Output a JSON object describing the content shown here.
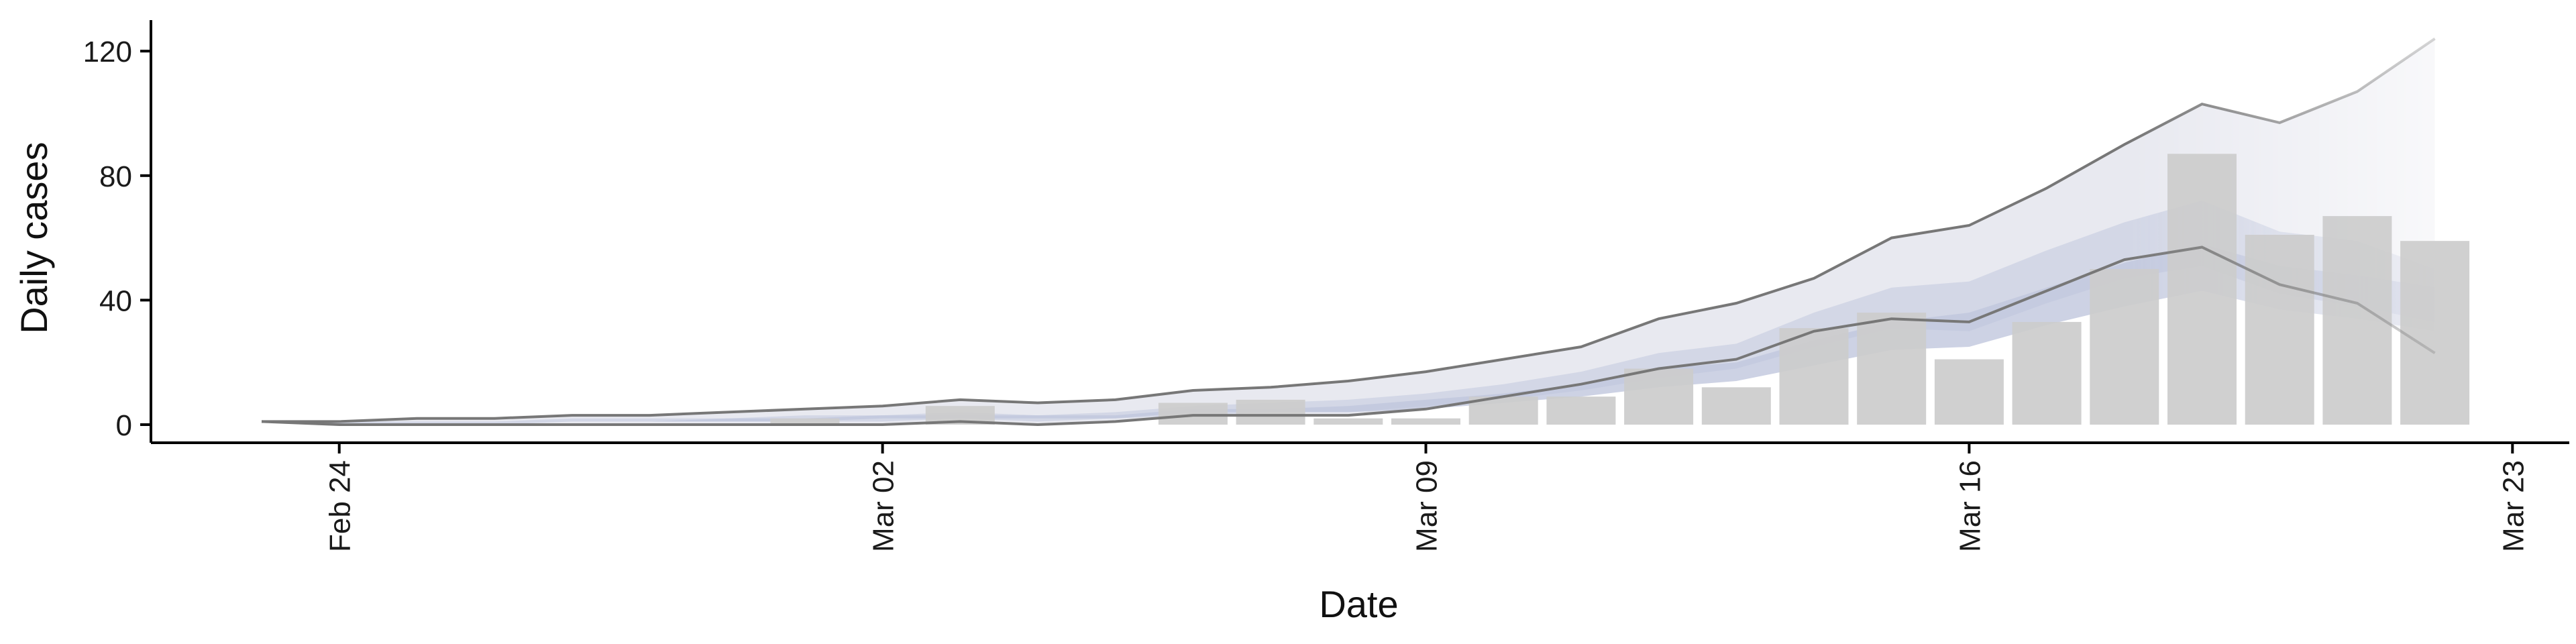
{
  "chart_data": {
    "type": "bar",
    "title": "",
    "xlabel": "Date",
    "ylabel": "Daily cases",
    "ylim": [
      -5,
      130
    ],
    "y_ticks": [
      0,
      40,
      80,
      120
    ],
    "x_ticks": [
      {
        "label": "Feb 24",
        "day": 1
      },
      {
        "label": "Mar 02",
        "day": 8
      },
      {
        "label": "Mar 09",
        "day": 15
      },
      {
        "label": "Mar 16",
        "day": 22
      },
      {
        "label": "Mar 23",
        "day": 29
      }
    ],
    "x_tick_rotation": "vertical",
    "grid": false,
    "legend": "none",
    "bars": {
      "name": "Reported cases",
      "color": "#cccccc",
      "dates": [
        "Mar 01",
        "Mar 03",
        "Mar 06",
        "Mar 07",
        "Mar 08",
        "Mar 09",
        "Mar 10",
        "Mar 11",
        "Mar 12",
        "Mar 13",
        "Mar 14",
        "Mar 15",
        "Mar 16",
        "Mar 17",
        "Mar 18",
        "Mar 19",
        "Mar 20",
        "Mar 21",
        "Mar 22"
      ],
      "values": [
        2,
        6,
        7,
        8,
        2,
        2,
        9,
        9,
        18,
        12,
        31,
        36,
        21,
        33,
        50,
        87,
        61,
        67,
        59
      ]
    },
    "bands": {
      "dates": [
        "Feb 23",
        "Feb 24",
        "Feb 25",
        "Feb 26",
        "Feb 27",
        "Feb 28",
        "Feb 29",
        "Mar 01",
        "Mar 02",
        "Mar 03",
        "Mar 04",
        "Mar 05",
        "Mar 06",
        "Mar 07",
        "Mar 08",
        "Mar 09",
        "Mar 10",
        "Mar 11",
        "Mar 12",
        "Mar 13",
        "Mar 14",
        "Mar 15",
        "Mar 16",
        "Mar 17",
        "Mar 18",
        "Mar 19",
        "Mar 20",
        "Mar 21",
        "Mar 22"
      ],
      "upper": [
        1,
        1,
        2,
        2,
        3,
        3,
        4,
        5,
        6,
        8,
        7,
        8,
        11,
        12,
        14,
        17,
        21,
        25,
        34,
        39,
        47,
        60,
        64,
        76,
        90,
        103,
        97,
        107,
        124
      ],
      "lower": [
        1,
        0,
        0,
        0,
        0,
        0,
        0,
        0,
        0,
        1,
        0,
        1,
        3,
        3,
        3,
        5,
        9,
        13,
        18,
        21,
        30,
        34,
        33,
        43,
        53,
        57,
        45,
        39,
        23
      ],
      "inner_upper": [
        1,
        1,
        1,
        1,
        2,
        2,
        2,
        3,
        3,
        4,
        3,
        4,
        6,
        7,
        8,
        10,
        13,
        17,
        23,
        26,
        36,
        44,
        46,
        56,
        65,
        72,
        62,
        59,
        50
      ],
      "inner_lower": [
        1,
        0,
        0,
        0,
        1,
        1,
        1,
        1,
        1,
        2,
        1,
        2,
        3,
        4,
        4,
        6,
        8,
        11,
        15,
        18,
        25,
        31,
        30,
        39,
        47,
        51,
        42,
        38,
        33
      ],
      "core_upper": [
        1,
        1,
        1,
        1,
        1,
        1,
        2,
        2,
        3,
        3,
        3,
        3,
        5,
        5,
        6,
        8,
        10,
        13,
        18,
        20,
        27,
        33,
        36,
        44,
        52,
        58,
        51,
        48,
        44
      ],
      "core_lower": [
        1,
        1,
        1,
        1,
        1,
        1,
        1,
        1,
        2,
        2,
        2,
        2,
        4,
        4,
        4,
        5,
        7,
        9,
        12,
        14,
        19,
        24,
        25,
        32,
        38,
        43,
        37,
        34,
        30
      ]
    },
    "colors": {
      "outer_band": "#e8e9f0",
      "inner_band": "#cfd4e4",
      "core_band": "#c0c7dd",
      "bound_line": "#777777",
      "bar": "#cccccc",
      "axis": "#000000"
    }
  }
}
